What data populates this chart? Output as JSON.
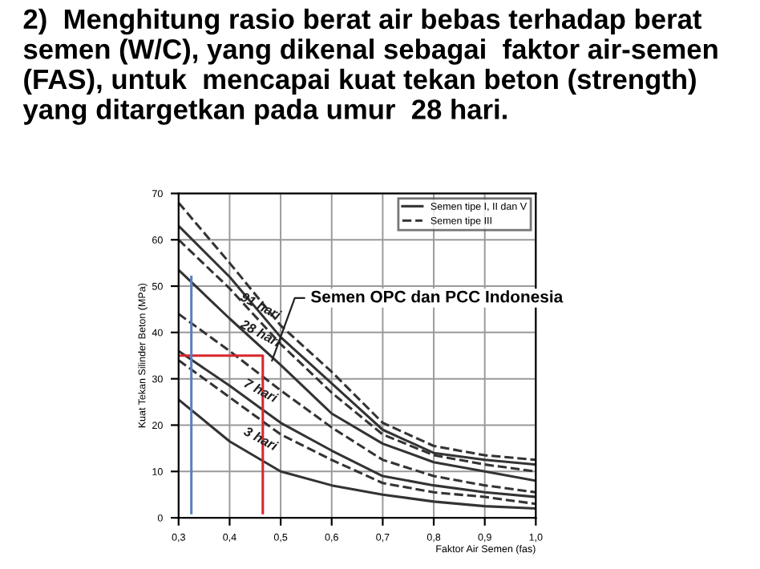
{
  "chart_data": {
    "type": "line",
    "title": "2)  Menghitung rasio berat air bebas terhadap berat semen (W/C), yang dikenal sebagai  faktor air-semen (FAS), untuk  mencapai kuat tekan beton (strength) yang ditargetkan pada umur  28 hari.",
    "xlabel": "Faktor Air Semen (fas)",
    "ylabel": "Kuat Tekan Silinder Beton (MPa)",
    "x": [
      0.3,
      0.4,
      0.5,
      0.6,
      0.7,
      0.8,
      0.9,
      1.0
    ],
    "series": [
      {
        "name": "Semen tipe I, II dan V",
        "color": "#333333",
        "line_style": "solid",
        "values": [
          63,
          52,
          39,
          29,
          19,
          14,
          12.5,
          11.5
        ]
      },
      {
        "name": "Semen tipe III",
        "color": "#333333",
        "line_style": "dashed",
        "values": [
          68,
          55,
          41.5,
          31.5,
          20.5,
          15.5,
          13.5,
          12.5
        ]
      },
      {
        "color": "#333333",
        "line_style": "dashed",
        "values": [
          60,
          49.5,
          37.5,
          27,
          18,
          13.5,
          11.5,
          10
        ]
      },
      {
        "color": "#333333",
        "line_style": "solid",
        "values": [
          53.5,
          43,
          33,
          22.5,
          16,
          12,
          10,
          8
        ]
      },
      {
        "color": "#333333",
        "line_style": "dashed",
        "values": [
          44,
          36,
          27.5,
          19.5,
          12.5,
          9,
          7,
          5.5
        ]
      },
      {
        "color": "#333333",
        "line_style": "solid",
        "values": [
          36,
          28.5,
          20.5,
          14.5,
          9,
          7,
          5.5,
          4.5
        ]
      },
      {
        "color": "#333333",
        "line_style": "dashed",
        "values": [
          34,
          26,
          18,
          12.5,
          7.5,
          5.5,
          4.5,
          3
        ]
      },
      {
        "color": "#333333",
        "line_style": "solid",
        "values": [
          25.5,
          16.5,
          10,
          7,
          5,
          3.5,
          2.5,
          2
        ]
      },
      {
        "color": "#d9262c",
        "line_style": "solid",
        "x": [
          0.3,
          0.465,
          0.465
        ],
        "values": [
          35,
          35,
          1
        ]
      },
      {
        "color": "#5b7fbf",
        "line_style": "solid",
        "x": [
          0.325,
          0.325
        ],
        "values": [
          52,
          1
        ]
      }
    ],
    "annotations": [
      "91 hari",
      "28 hari",
      "7 hari",
      "3 hari",
      {
        "text": "Semen OPC dan PCC Indonesia",
        "x": 0.48,
        "y": 33
      }
    ],
    "xlim": [
      0.3,
      1.0
    ],
    "ylim": [
      0,
      70
    ],
    "xticks": [
      {
        "value": 0.3,
        "label": "0,3"
      },
      {
        "value": 0.4,
        "label": "0,4"
      },
      {
        "value": 0.5,
        "label": "0,5"
      },
      {
        "value": 0.6,
        "label": "0,6"
      },
      {
        "value": 0.7,
        "label": "0,7"
      },
      {
        "value": 0.8,
        "label": "0,8"
      },
      {
        "value": 0.9,
        "label": "0,9"
      },
      {
        "value": 1.0,
        "label": "1,0"
      }
    ],
    "yticks": [
      0,
      10,
      20,
      30,
      40,
      50,
      60,
      70
    ],
    "grid": true,
    "legend": "top right",
    "marker": "none"
  }
}
